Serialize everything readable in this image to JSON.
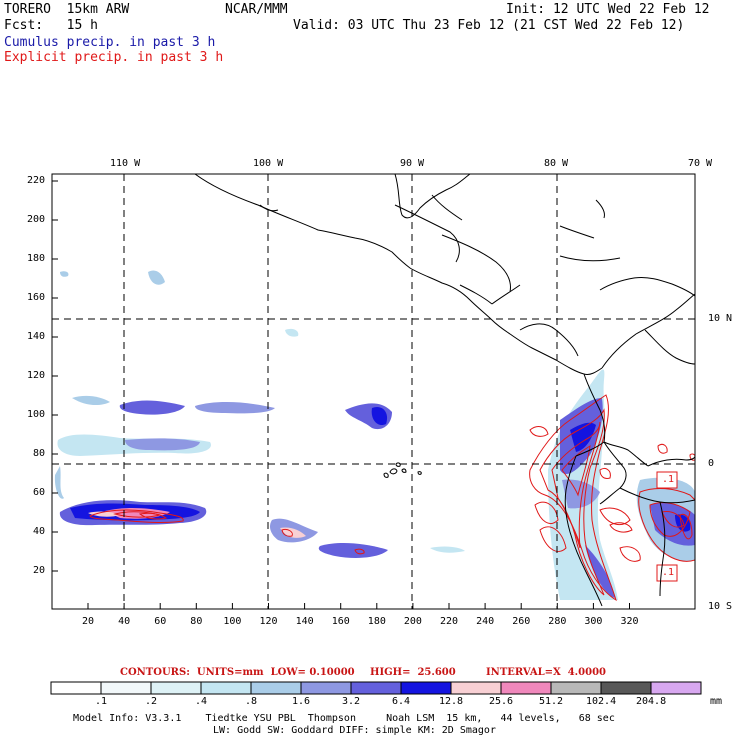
{
  "header": {
    "line1_left": "TORERO  15km ARW",
    "line1_mid": "NCAR/MMM",
    "line1_right": "Init: 12 UTC Wed 22 Feb 12",
    "line2_left": "Fcst:   15 h",
    "line2_right": "Valid: 03 UTC Thu 23 Feb 12 (21 CST Wed 22 Feb 12)",
    "line3": "Cumulus precip. in past 3 h",
    "line4": "Explicit precip. in past 3 h"
  },
  "axes": {
    "top_lon_labels": [
      "110 W",
      "100 W",
      "90 W",
      "80 W",
      "70 W"
    ],
    "right_lat_labels": [
      "10 N",
      "0",
      "10 S"
    ],
    "left_ticks": [
      "220",
      "200",
      "180",
      "160",
      "140",
      "120",
      "100",
      "80",
      "60",
      "40",
      "20"
    ],
    "bottom_ticks": [
      "20",
      "40",
      "60",
      "80",
      "100",
      "120",
      "140",
      "160",
      "180",
      "200",
      "220",
      "240",
      "260",
      "280",
      "300",
      "320"
    ]
  },
  "annotations": {
    "contour_label_1": ".1",
    "contour_label_2": ".1"
  },
  "contours_note": {
    "units": "CONTOURS:  UNITS=mm  LOW= 0.10000",
    "high": "HIGH=  25.600",
    "interval": "INTERVAL=X  4.0000"
  },
  "colorbar": {
    "labels": [
      ".1",
      ".2",
      ".4",
      ".8",
      "1.6",
      "3.2",
      "6.4",
      "12.8",
      "25.6",
      "51.2",
      "102.4",
      "204.8"
    ],
    "unit": "mm",
    "colors": [
      "#ffffff",
      "#f2f8fa",
      "#def2f6",
      "#c4e6f2",
      "#aacde8",
      "#8e98e2",
      "#6460dc",
      "#1414e0",
      "#f8d0d4",
      "#f088bc",
      "#b8b8b8",
      "#585858",
      "#d8a8f0"
    ]
  },
  "footer": {
    "line1": "Model Info: V3.3.1    Tiedtke YSU PBL  Thompson     Noah LSM  15 km,   44 levels,   68 sec",
    "line2": "LW: Godd SW: Goddard DIFF: simple KM: 2D Smagor"
  }
}
